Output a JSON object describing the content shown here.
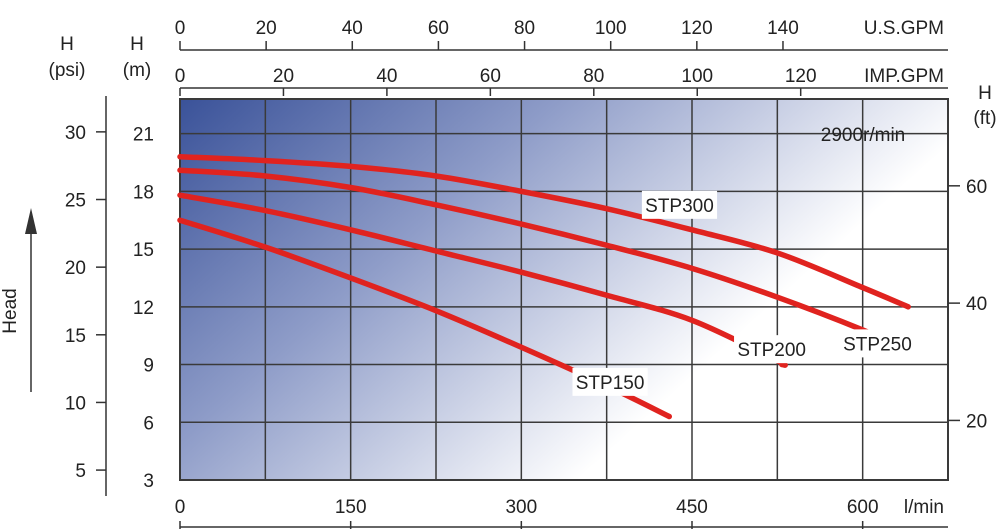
{
  "chart_data": {
    "type": "line",
    "speed_label": "2900r/min",
    "x_axes": {
      "lpm": {
        "unit": "l/min",
        "ticks": [
          0,
          150,
          300,
          450,
          600
        ],
        "range": [
          0,
          675
        ]
      },
      "imp_gpm": {
        "unit": "IMP.GPM",
        "ticks": [
          0,
          20,
          40,
          60,
          80,
          100,
          120
        ]
      },
      "us_gpm": {
        "unit": "U.S.GPM",
        "ticks": [
          0,
          20,
          40,
          60,
          80,
          100,
          120,
          140
        ]
      }
    },
    "y_axes": {
      "m": {
        "title": "H",
        "unit": "(m)",
        "ticks": [
          3,
          6,
          9,
          12,
          15,
          18,
          21
        ],
        "range": [
          3,
          22.8
        ]
      },
      "psi": {
        "title": "H",
        "unit": "(psi)",
        "ticks": [
          5,
          10,
          15,
          20,
          25,
          30
        ]
      },
      "ft": {
        "title": "H",
        "unit": "(ft)",
        "ticks": [
          20,
          40,
          60
        ]
      }
    },
    "side_label": "Head",
    "grid": true,
    "series": [
      {
        "name": "STP150",
        "label_at": [
          378,
          8.1
        ],
        "x": [
          0,
          75,
          150,
          225,
          300,
          375,
          430
        ],
        "y": [
          16.5,
          15.1,
          13.5,
          11.8,
          9.9,
          7.9,
          6.3
        ]
      },
      {
        "name": "STP200",
        "label_at": [
          520,
          9.8
        ],
        "x": [
          0,
          75,
          150,
          225,
          300,
          375,
          450,
          525,
          529
        ],
        "y": [
          17.8,
          17.0,
          16.0,
          14.9,
          13.8,
          12.6,
          11.3,
          9.2,
          9.0
        ]
      },
      {
        "name": "STP250",
        "label_at": [
          613,
          10.1
        ],
        "x": [
          0,
          75,
          150,
          225,
          300,
          375,
          450,
          525,
          600,
          604
        ],
        "y": [
          19.1,
          18.8,
          18.2,
          17.3,
          16.3,
          15.2,
          14.0,
          12.5,
          10.8,
          10.6
        ]
      },
      {
        "name": "STP300",
        "label_at": [
          439,
          17.3
        ],
        "x": [
          0,
          75,
          150,
          225,
          300,
          375,
          450,
          525,
          600,
          640
        ],
        "y": [
          19.8,
          19.6,
          19.3,
          18.8,
          18.0,
          17.1,
          16.0,
          14.8,
          13.0,
          12.0
        ]
      }
    ]
  },
  "colors": {
    "curve": "#e0231f",
    "gradient_dark": "#3a5299",
    "gradient_light": "#ffffff",
    "grid": "#3a3a3a",
    "text": "#222222"
  }
}
